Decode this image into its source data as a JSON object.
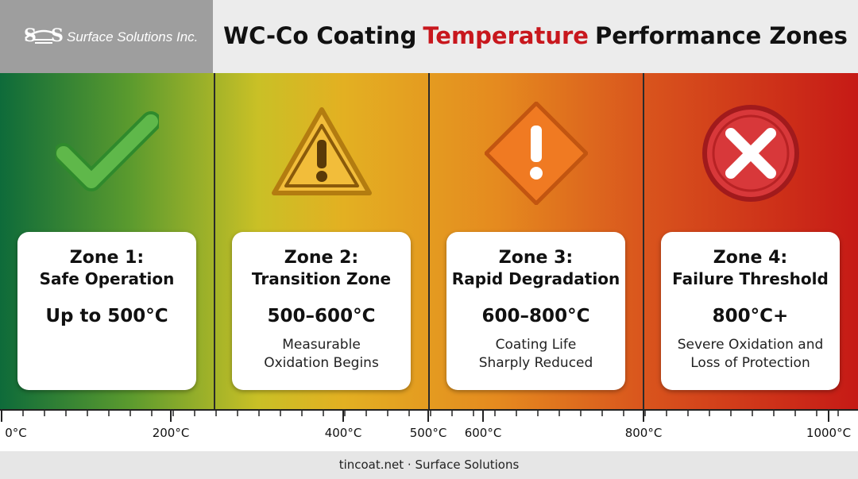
{
  "header": {
    "logo": {
      "letters": [
        "S",
        "S"
      ],
      "name": "Surface Solutions Inc."
    },
    "title": {
      "before": "WC-Co Coating",
      "highlight": "Temperature",
      "after": "Performance Zones"
    }
  },
  "zones": [
    {
      "label": "Zone 1:",
      "name": "Safe Operation",
      "range": "Up to 500°C"
    },
    {
      "label": "Zone 2:",
      "name": "Transition Zone",
      "range": "500–600°C",
      "description": [
        "Measurable",
        "Oxidation Begins"
      ]
    },
    {
      "label": "Zone 3:",
      "name": "Rapid Degradation",
      "range": "600–800°C",
      "description": [
        "Coating Life",
        "Sharply Reduced"
      ]
    },
    {
      "label": "Zone 4:",
      "name": "Failure Threshold",
      "range": "800°C+",
      "description": [
        "Severe Oxidation and",
        "Loss of Protection"
      ]
    }
  ],
  "scale": {
    "labels": [
      "0°C",
      "200°C",
      "400°C",
      "500°C",
      "600°C",
      "800°C",
      "1000°C"
    ]
  },
  "footer": {
    "text": "tincoat.net · Surface Solutions"
  }
}
